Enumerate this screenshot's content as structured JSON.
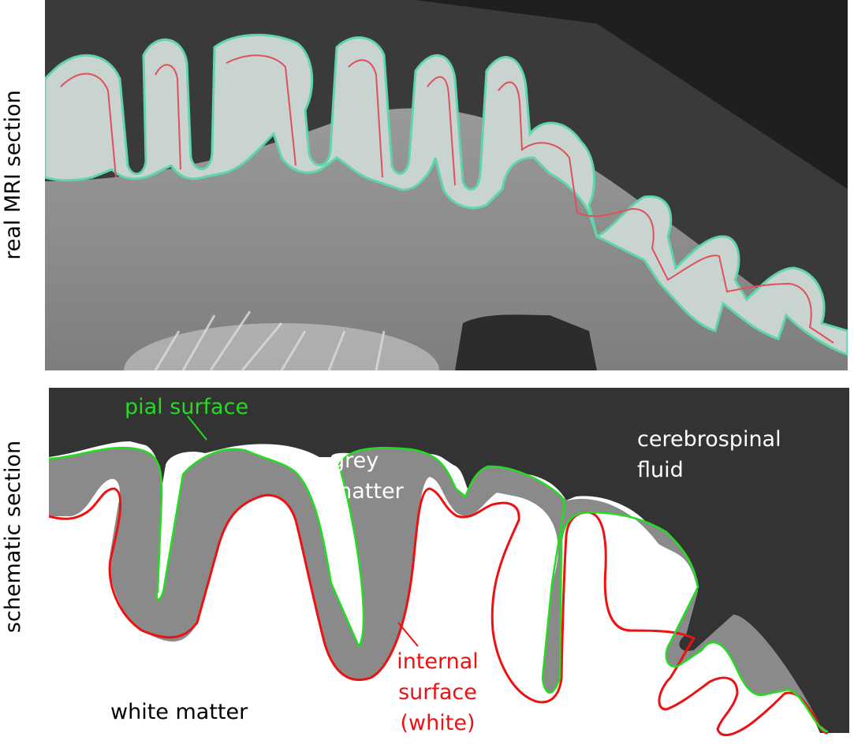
{
  "labels": {
    "real_section": "real MRI section",
    "schematic_section": "schematic section"
  },
  "schematic": {
    "pial_surface": "pial surface",
    "grey_matter_line1": "grey",
    "grey_matter_line2": "matter",
    "csf_line1": "cerebrospinal",
    "csf_line2": "fluid",
    "white_matter": "white matter",
    "internal_line1": "internal",
    "internal_line2": "surface",
    "internal_line3": "(white)"
  },
  "colors": {
    "pial": "#22dd22",
    "internal": "#ee1111",
    "csf": "#333333",
    "grey_matter": "#8a8a8a",
    "mri_grey_matter": "#c9d4d0",
    "mri_pial": "#5fd6a8",
    "mri_internal": "#e0505a"
  }
}
